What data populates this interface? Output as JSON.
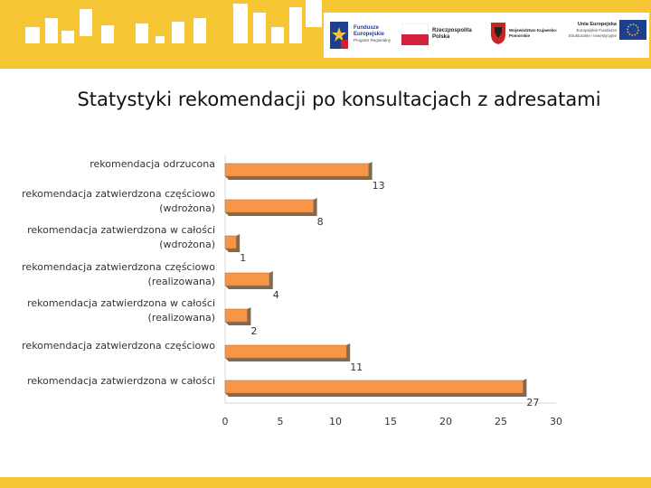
{
  "logos": {
    "fe_title": "Fundusze Europejskie",
    "fe_subtitle": "Program Regionalny",
    "rp_title": "Rzeczpospolita Polska",
    "woj_title": "Województwo Kujawsko-Pomorskie",
    "ue_title": "Unia Europejska",
    "ue_subtitle": "Europejskie Fundusze Strukturalne i Inwestycyjne"
  },
  "colors": {
    "accent_yellow": "#f5c533",
    "bar_fill": "#f79646",
    "bar_shadow": "#7f6a52"
  },
  "chart_data": {
    "type": "bar",
    "orientation": "horizontal",
    "title": "Statystyki rekomendacji po konsultacjach z adresatami",
    "categories": [
      [
        "rekomendacja odrzucona"
      ],
      [
        "rekomendacja zatwierdzona częściowo",
        "(wdrożona)"
      ],
      [
        "rekomendacja zatwierdzona w całości",
        "(wdrożona)"
      ],
      [
        "rekomendacja zatwierdzona częściowo",
        "(realizowana)"
      ],
      [
        "rekomendacja zatwierdzona w całości",
        "(realizowana)"
      ],
      [
        "rekomendacja zatwierdzona częściowo"
      ],
      [
        "rekomendacja zatwierdzona w całości"
      ]
    ],
    "values": [
      13,
      8,
      1,
      4,
      2,
      11,
      27
    ],
    "xlim": [
      0,
      30
    ],
    "xticks": [
      "0",
      "5",
      "10",
      "15",
      "20",
      "25",
      "30"
    ],
    "grid": false,
    "data_labels": true
  }
}
